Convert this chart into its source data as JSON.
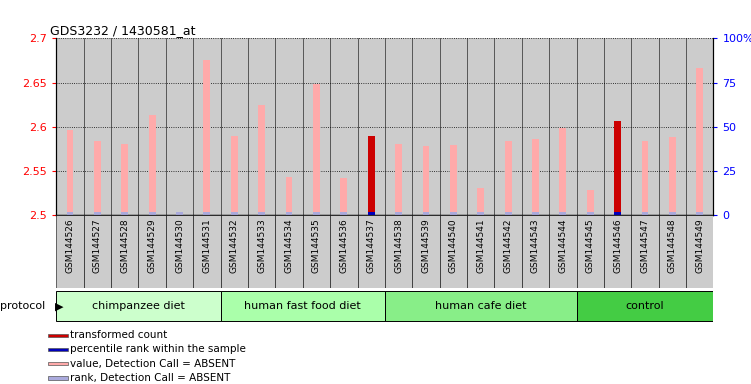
{
  "title": "GDS3232 / 1430581_at",
  "samples": [
    "GSM144526",
    "GSM144527",
    "GSM144528",
    "GSM144529",
    "GSM144530",
    "GSM144531",
    "GSM144532",
    "GSM144533",
    "GSM144534",
    "GSM144535",
    "GSM144536",
    "GSM144537",
    "GSM144538",
    "GSM144539",
    "GSM144540",
    "GSM144541",
    "GSM144542",
    "GSM144543",
    "GSM144544",
    "GSM144545",
    "GSM144546",
    "GSM144547",
    "GSM144548",
    "GSM144549"
  ],
  "values": [
    2.596,
    2.584,
    2.58,
    2.613,
    2.503,
    2.675,
    2.59,
    2.625,
    2.543,
    2.648,
    2.542,
    2.589,
    2.58,
    2.578,
    2.579,
    2.531,
    2.584,
    2.586,
    2.598,
    2.528,
    2.607,
    2.584,
    2.588,
    2.667
  ],
  "value_colors": [
    "#ffaaaa",
    "#ffaaaa",
    "#ffaaaa",
    "#ffaaaa",
    "#ffaaaa",
    "#ffaaaa",
    "#ffaaaa",
    "#ffaaaa",
    "#ffaaaa",
    "#ffaaaa",
    "#ffaaaa",
    "#cc0000",
    "#ffaaaa",
    "#ffaaaa",
    "#ffaaaa",
    "#ffaaaa",
    "#ffaaaa",
    "#ffaaaa",
    "#ffaaaa",
    "#ffaaaa",
    "#cc0000",
    "#ffaaaa",
    "#ffaaaa",
    "#ffaaaa"
  ],
  "rank_colors": [
    "#aaaadd",
    "#aaaadd",
    "#aaaadd",
    "#aaaadd",
    "#aaaadd",
    "#aaaadd",
    "#aaaadd",
    "#aaaadd",
    "#aaaadd",
    "#aaaadd",
    "#aaaadd",
    "#0000bb",
    "#aaaadd",
    "#aaaadd",
    "#aaaadd",
    "#aaaadd",
    "#aaaadd",
    "#aaaadd",
    "#aaaadd",
    "#aaaadd",
    "#0000bb",
    "#aaaadd",
    "#aaaadd",
    "#aaaadd"
  ],
  "group_configs": [
    {
      "start": 0,
      "end": 6,
      "color": "#ccffcc",
      "label": "chimpanzee diet"
    },
    {
      "start": 6,
      "end": 12,
      "color": "#aaffaa",
      "label": "human fast food diet"
    },
    {
      "start": 12,
      "end": 19,
      "color": "#88ee88",
      "label": "human cafe diet"
    },
    {
      "start": 19,
      "end": 24,
      "color": "#44cc44",
      "label": "control"
    }
  ],
  "ylim_left": [
    2.5,
    2.7
  ],
  "ylim_right": [
    0,
    100
  ],
  "yticks_left": [
    2.5,
    2.55,
    2.6,
    2.65,
    2.7
  ],
  "yticks_right": [
    0,
    25,
    50,
    75,
    100
  ],
  "ytick_labels_right": [
    "0",
    "25",
    "50",
    "75",
    "100%"
  ],
  "cell_bg_color": "#cccccc",
  "protocol_label": "protocol",
  "legend_items": [
    {
      "color": "#cc0000",
      "label": "transformed count"
    },
    {
      "color": "#0000bb",
      "label": "percentile rank within the sample"
    },
    {
      "color": "#ffaaaa",
      "label": "value, Detection Call = ABSENT"
    },
    {
      "color": "#aaaadd",
      "label": "rank, Detection Call = ABSENT"
    }
  ]
}
